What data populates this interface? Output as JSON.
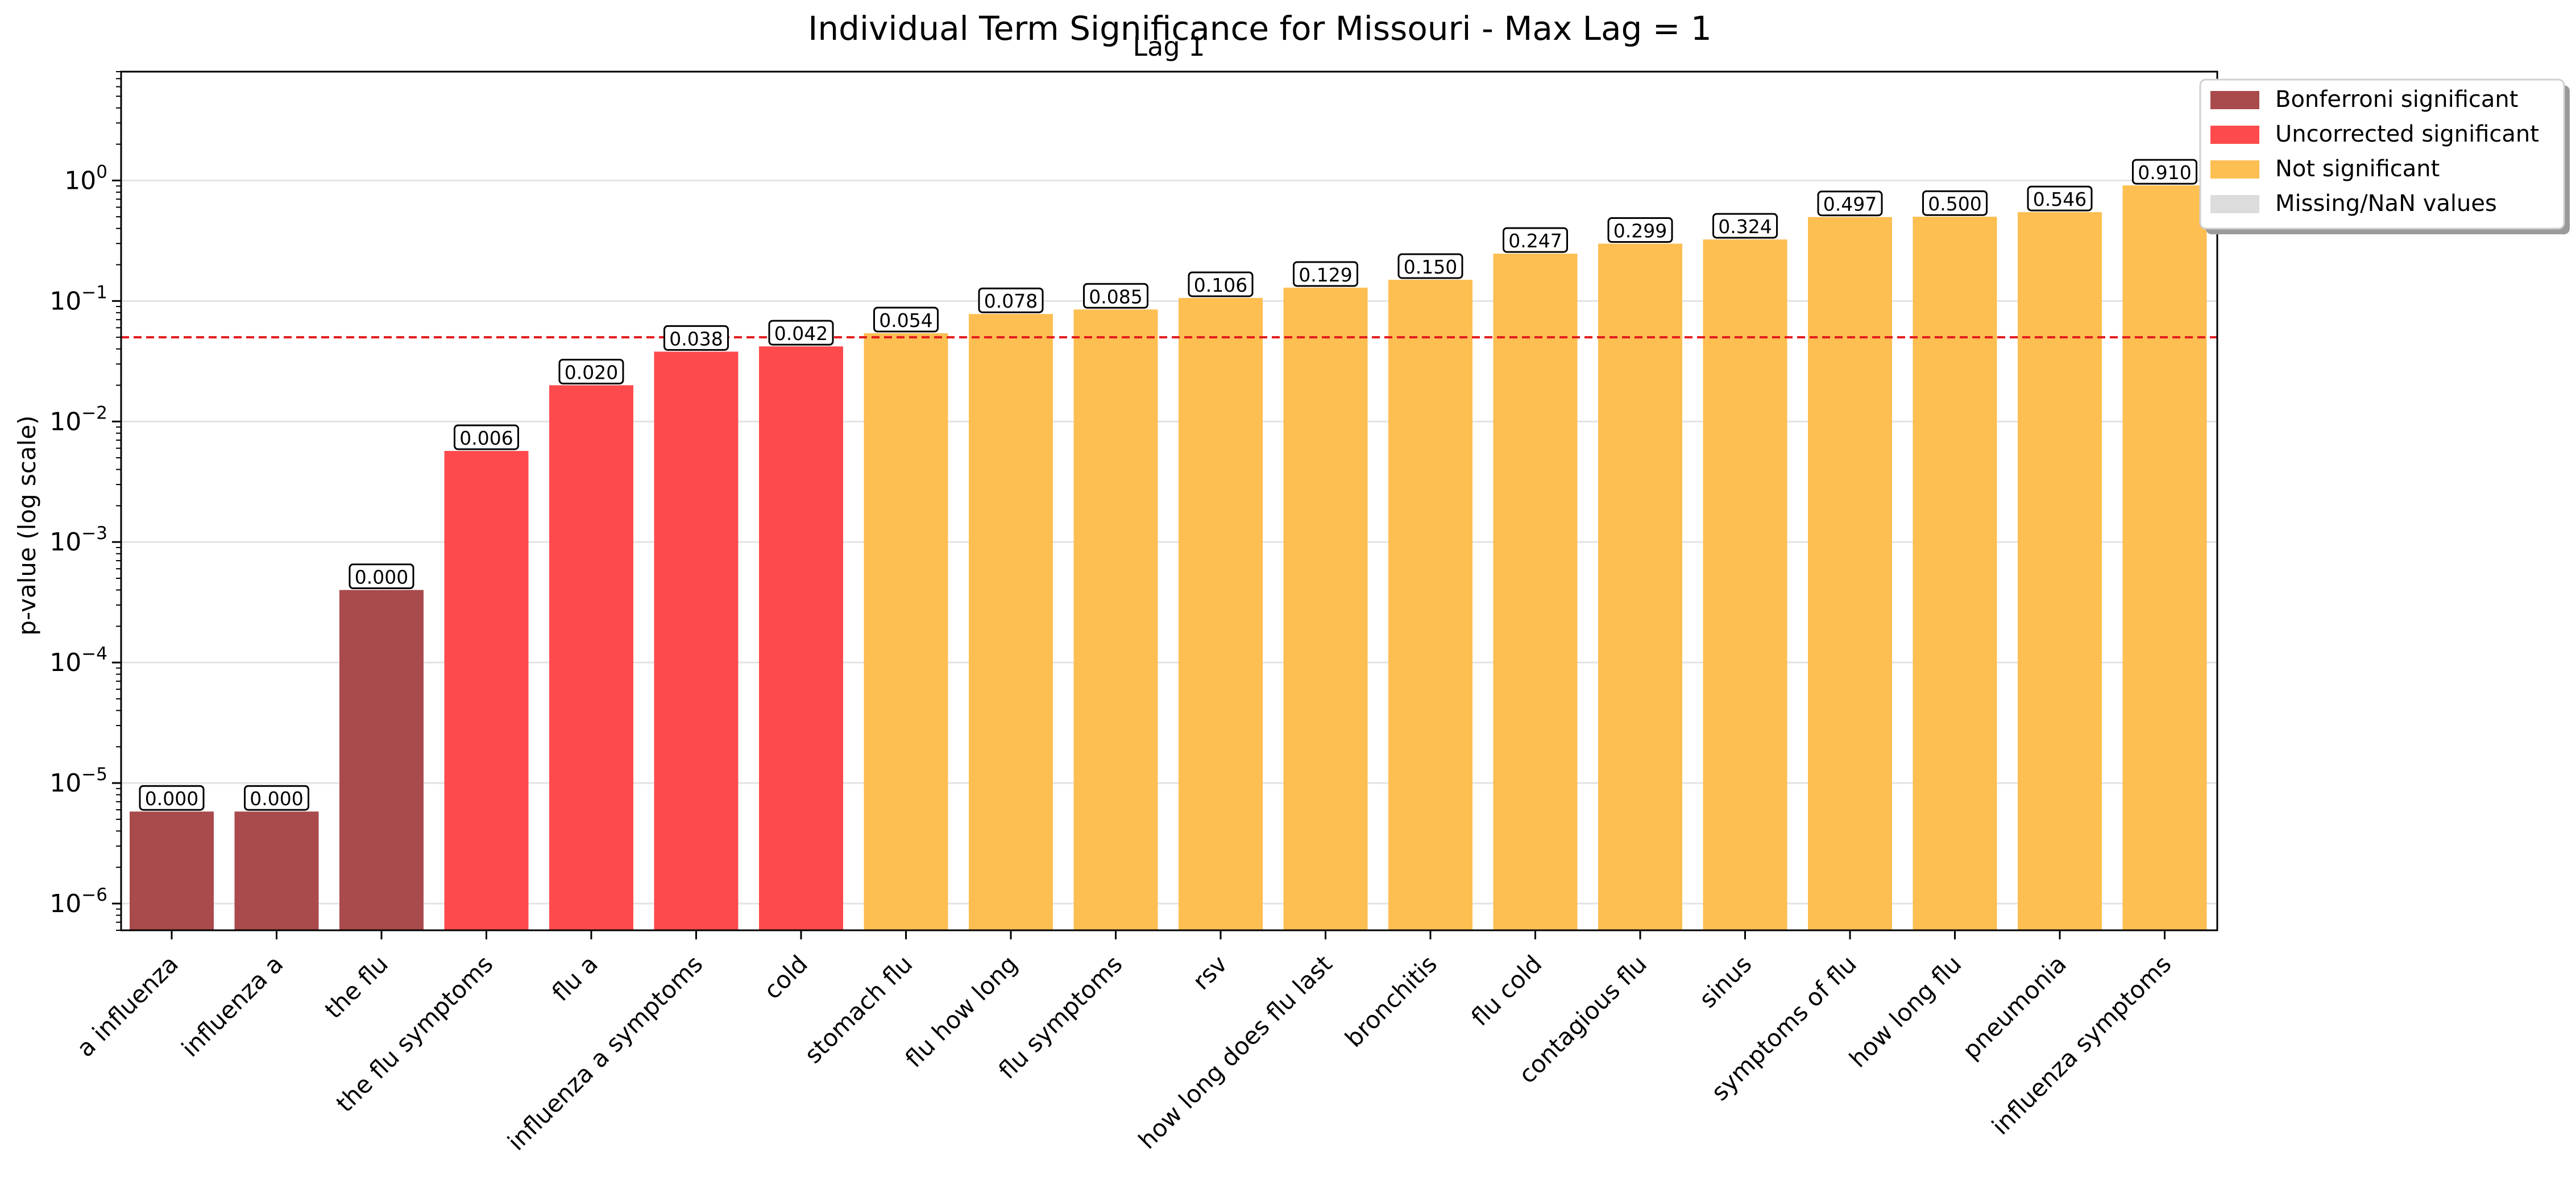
{
  "chart_data": {
    "type": "bar",
    "title": "Individual Term Significance for Missouri - Max Lag = 1",
    "subtitle": "Lag 1",
    "xlabel": "",
    "ylabel": "p-value (log scale)",
    "yscale": "log",
    "ylim": [
      6e-07,
      8
    ],
    "grid": "horizontal",
    "legend_position": "top-right",
    "threshold": {
      "value": 0.05,
      "color": "#e31a1c",
      "style": "dashed"
    },
    "y_tick_labels": [
      {
        "base": "10",
        "exp": "−6",
        "value": 1e-06
      },
      {
        "base": "10",
        "exp": "−5",
        "value": 1e-05
      },
      {
        "base": "10",
        "exp": "−4",
        "value": 0.0001
      },
      {
        "base": "10",
        "exp": "−3",
        "value": 0.001
      },
      {
        "base": "10",
        "exp": "−2",
        "value": 0.01
      },
      {
        "base": "10",
        "exp": "−1",
        "value": 0.1
      },
      {
        "base": "10",
        "exp": "0",
        "value": 1
      }
    ],
    "categories": [
      "a influenza",
      "influenza a",
      "the flu",
      "the flu symptoms",
      "flu a",
      "influenza a symptoms",
      "cold",
      "stomach flu",
      "flu how long",
      "flu symptoms",
      "rsv",
      "how long does flu last",
      "bronchitis",
      "flu cold",
      "contagious flu",
      "sinus",
      "symptoms of flu",
      "how long flu",
      "pneumonia",
      "influenza symptoms"
    ],
    "values": [
      5.8e-06,
      5.8e-06,
      0.0004,
      0.0057,
      0.02,
      0.038,
      0.042,
      0.054,
      0.078,
      0.085,
      0.106,
      0.129,
      0.15,
      0.247,
      0.299,
      0.324,
      0.497,
      0.5,
      0.546,
      0.91
    ],
    "value_labels": [
      "0.000",
      "0.000",
      "0.000",
      "0.006",
      "0.020",
      "0.038",
      "0.042",
      "0.054",
      "0.078",
      "0.085",
      "0.106",
      "0.129",
      "0.150",
      "0.247",
      "0.299",
      "0.324",
      "0.497",
      "0.500",
      "0.546",
      "0.910"
    ],
    "groups": [
      "bonferroni",
      "bonferroni",
      "bonferroni",
      "uncorrected",
      "uncorrected",
      "uncorrected",
      "uncorrected",
      "not_sig",
      "not_sig",
      "not_sig",
      "not_sig",
      "not_sig",
      "not_sig",
      "not_sig",
      "not_sig",
      "not_sig",
      "not_sig",
      "not_sig",
      "not_sig",
      "not_sig"
    ],
    "colors": {
      "bonferroni": "#a94a4d",
      "uncorrected": "#fe4a4d",
      "not_sig": "#fdbe52",
      "missing": "#dcdcdc",
      "threshold": "#e31a1c",
      "grid": "#e3e3e3"
    },
    "legend": [
      {
        "label": "Bonferroni significant",
        "color_key": "bonferroni"
      },
      {
        "label": "Uncorrected significant",
        "color_key": "uncorrected"
      },
      {
        "label": "Not significant",
        "color_key": "not_sig"
      },
      {
        "label": "Missing/NaN values",
        "color_key": "missing"
      }
    ]
  }
}
